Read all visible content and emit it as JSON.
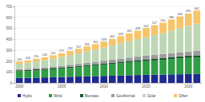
{
  "chart_data": {
    "type": "bar",
    "stacked": true,
    "grid": true,
    "legend": "bottom",
    "categories": [
      "2000",
      null,
      null,
      null,
      null,
      "2005",
      null,
      null,
      null,
      null,
      "2010",
      null,
      null,
      null,
      null,
      "2015",
      null,
      null,
      null,
      null,
      "2020",
      null
    ],
    "ylim": [
      0,
      700
    ],
    "yticks": [
      0,
      100,
      200,
      300,
      400,
      500,
      600,
      700
    ],
    "series": [
      {
        "name": "Hydro",
        "color": "#1f2a8f",
        "values": [
          45,
          46,
          48,
          50,
          52,
          54,
          56,
          58,
          60,
          62,
          64,
          66,
          68,
          70,
          72,
          74,
          75,
          76,
          78,
          79,
          80,
          82
        ]
      },
      {
        "name": "Wind",
        "color": "#2f9e44",
        "values": [
          60,
          62,
          65,
          68,
          72,
          76,
          80,
          85,
          90,
          95,
          100,
          105,
          110,
          115,
          120,
          125,
          130,
          135,
          140,
          145,
          148,
          150
        ]
      },
      {
        "name": "Biomass",
        "color": "#1e5a2c",
        "values": [
          10,
          10,
          11,
          11,
          12,
          12,
          13,
          13,
          14,
          14,
          15,
          15,
          16,
          16,
          17,
          17,
          18,
          18,
          19,
          19,
          20,
          20
        ]
      },
      {
        "name": "Geothermal",
        "color": "#9c9c9c",
        "values": [
          10,
          11,
          12,
          13,
          14,
          15,
          17,
          18,
          20,
          22,
          24,
          26,
          28,
          30,
          31,
          32,
          34,
          35,
          36,
          37,
          38,
          40
        ]
      },
      {
        "name": "Solar",
        "color": "#bdd7b5",
        "values": [
          50,
          55,
          60,
          66,
          72,
          80,
          88,
          96,
          104,
          112,
          120,
          130,
          140,
          150,
          160,
          170,
          180,
          190,
          205,
          220,
          235,
          250
        ]
      },
      {
        "name": "Other",
        "color": "#f6c46a",
        "values": [
          20,
          22,
          24,
          26,
          30,
          34,
          38,
          42,
          46,
          50,
          55,
          60,
          66,
          72,
          78,
          84,
          90,
          96,
          102,
          108,
          114,
          120
        ]
      }
    ],
    "totals": [
      195,
      206,
      220,
      234,
      252,
      271,
      292,
      312,
      334,
      355,
      378,
      402,
      428,
      453,
      478,
      502,
      527,
      550,
      580,
      608,
      635,
      662
    ]
  }
}
